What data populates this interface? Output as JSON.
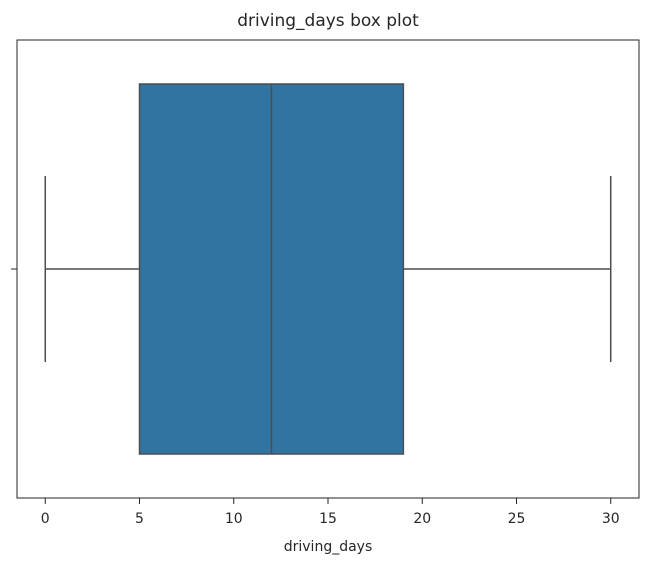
{
  "chart_data": {
    "type": "box",
    "title": "driving_days box plot",
    "xlabel": "driving_days",
    "ylabel": "",
    "xlim": [
      -1.5,
      31.5
    ],
    "xticks": [
      0,
      5,
      10,
      15,
      20,
      25,
      30
    ],
    "grid": false,
    "orientation": "horizontal",
    "box": {
      "whisker_low": 0,
      "q1": 5,
      "median": 12,
      "q3": 19,
      "whisker_high": 30
    },
    "colors": {
      "box_fill": "#3274a1",
      "lines": "#4d4d4d",
      "axes": "#262626"
    }
  }
}
